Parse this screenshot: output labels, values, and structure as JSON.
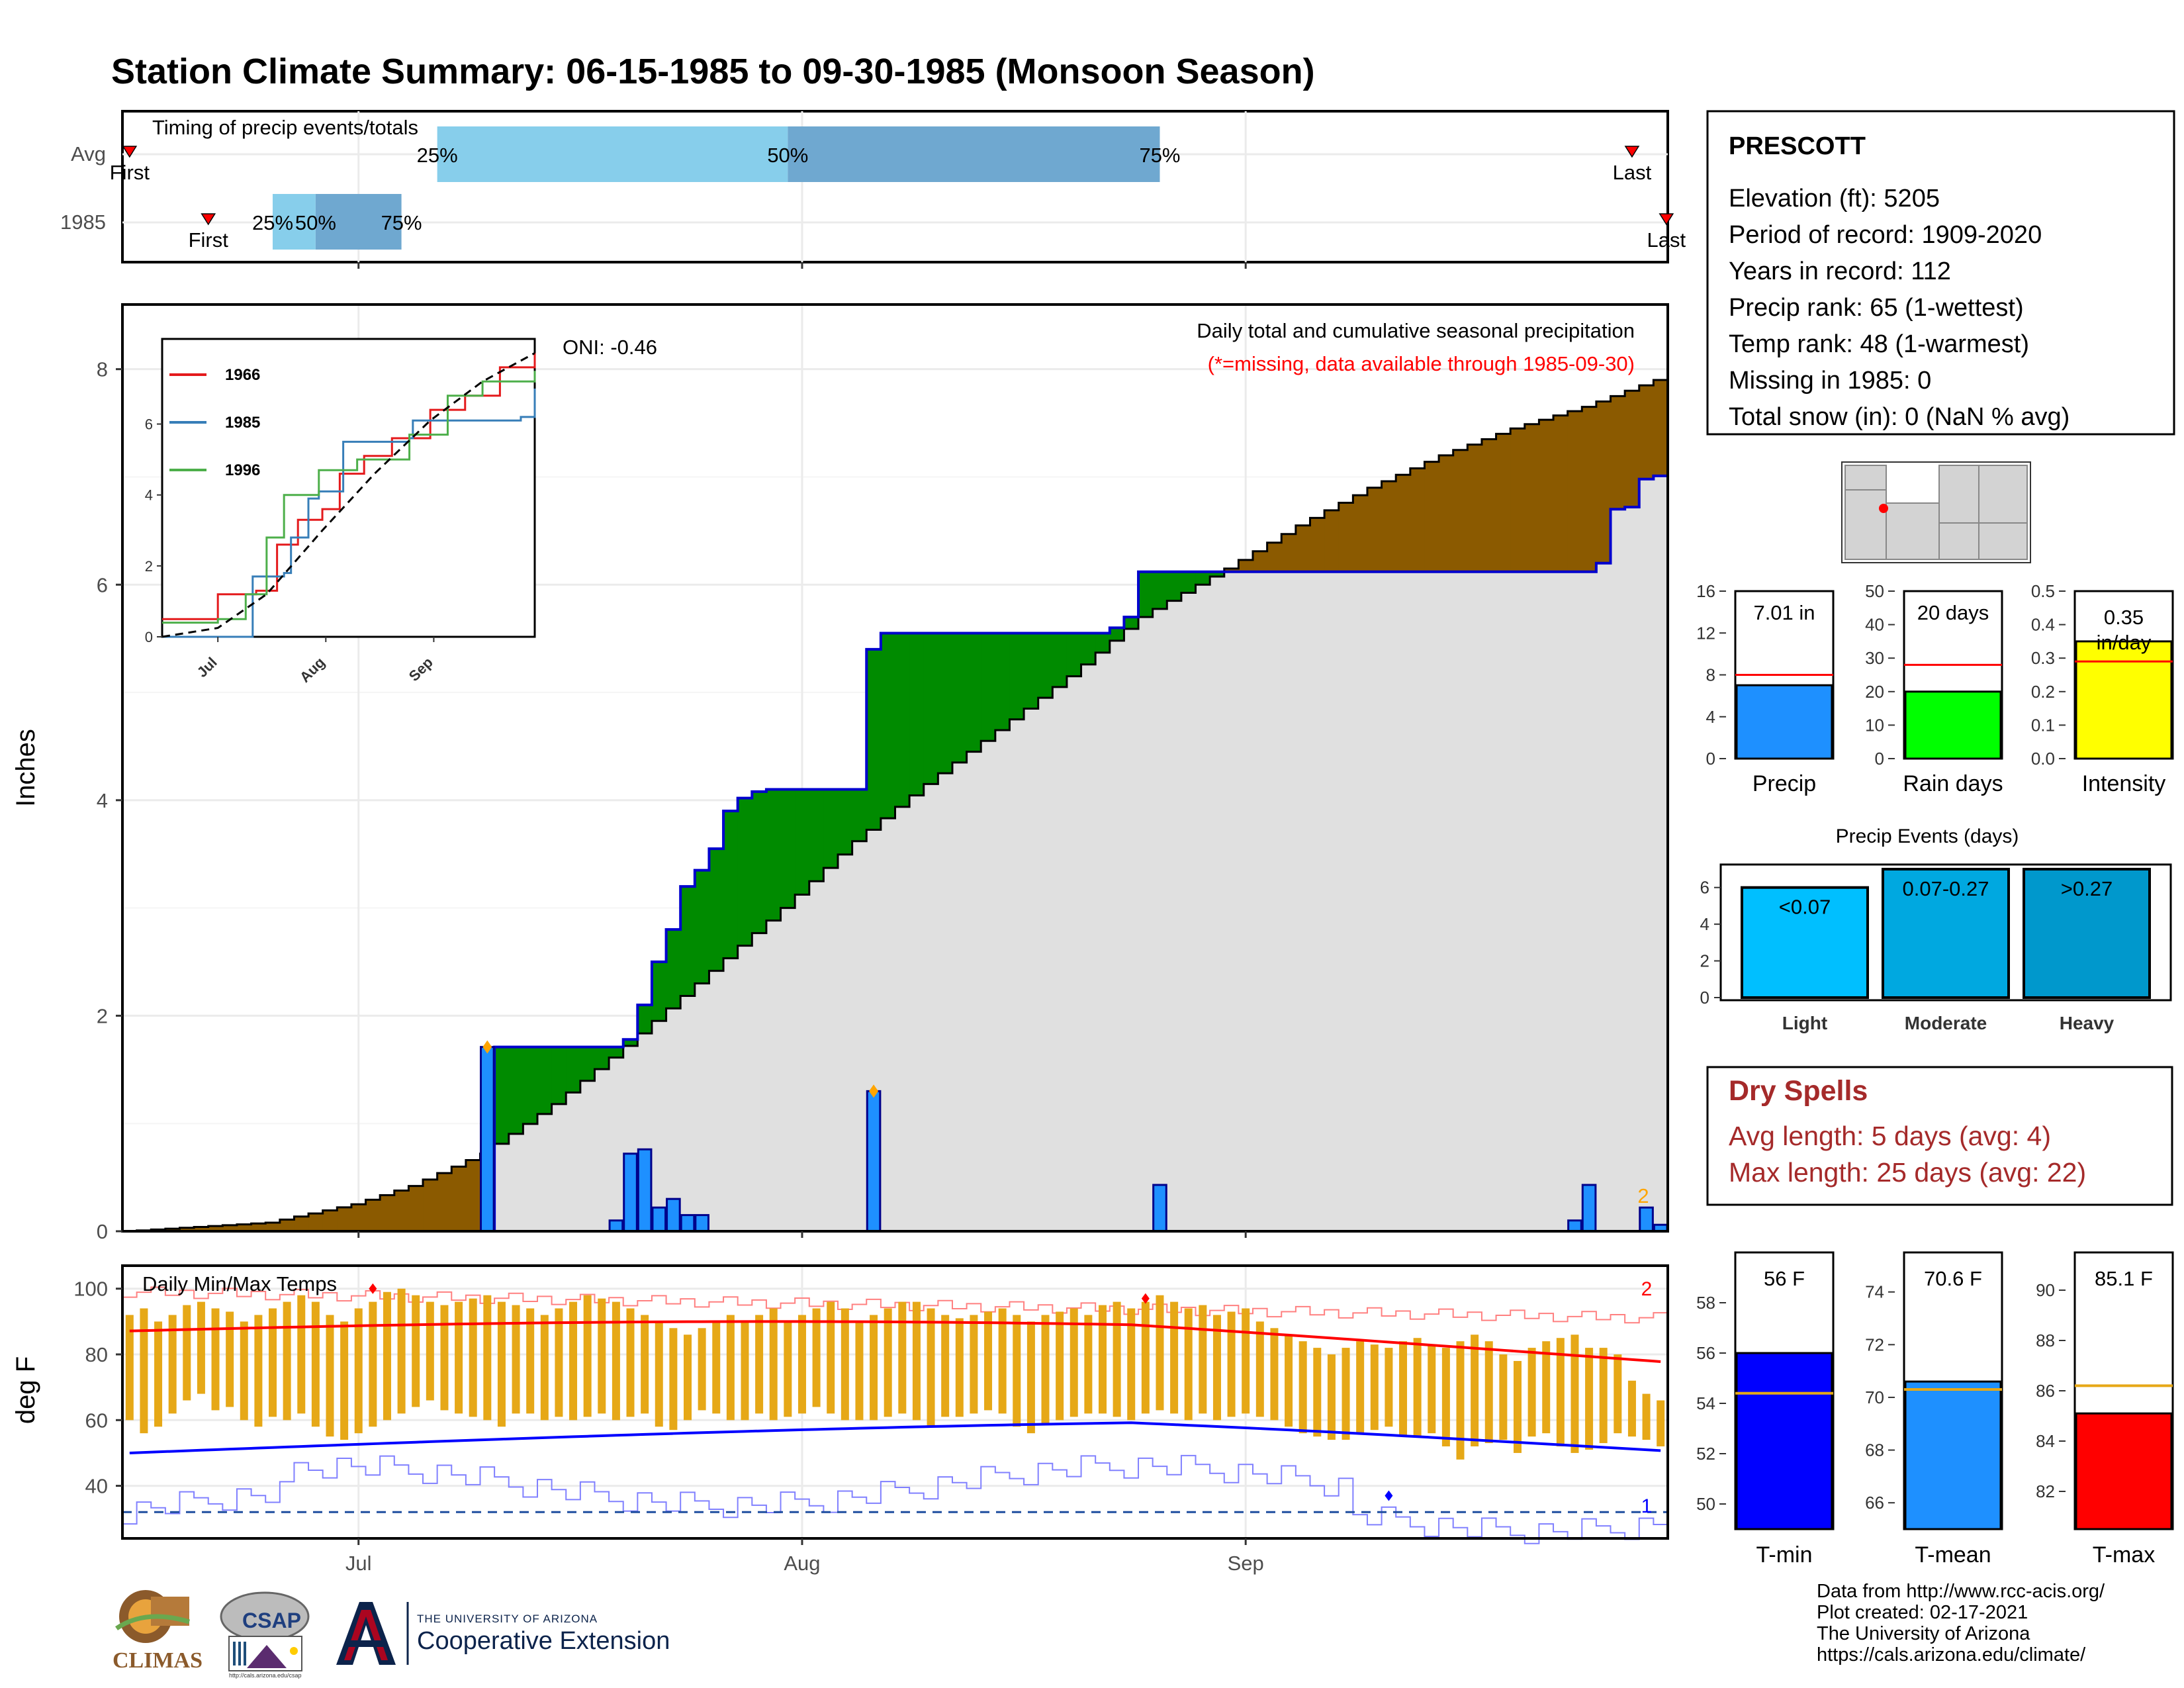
{
  "title": "Station Climate Summary: 06-15-1985 to 09-30-1985 (Monsoon Season)",
  "colors": {
    "title": "#ff0000",
    "precip_bar": "#1e90ff",
    "above_fill": "#008b00",
    "below_fill": "#8b5a00",
    "cumulative_fill": "#e0e0e0",
    "dry_spells": "#a52a2a",
    "temp_bar": "#e6a817"
  },
  "timing": {
    "title": "Timing of precip events/totals",
    "rows": [
      "Avg",
      "1985"
    ],
    "avg": {
      "first": "First",
      "last": "Last",
      "p25": "25%",
      "p50": "50%",
      "p75": "75%"
    },
    "y1985": {
      "first": "First",
      "last": "Last",
      "p25": "25%",
      "p50": "50%",
      "p75": "75%"
    }
  },
  "precip": {
    "ylabel": "Inches",
    "yticks": [
      "0",
      "2",
      "4",
      "6",
      "8"
    ],
    "annotation_title": "Daily total and cumulative seasonal precipitation",
    "annotation_missing": "(*=missing, data available through 1985-09-30)",
    "oni": "ONI: -0.46",
    "end_marker": "2"
  },
  "inset": {
    "legend": [
      "1966",
      "1985",
      "1996"
    ],
    "legend_colors": [
      "#e41a1c",
      "#377eb8",
      "#4daf4a"
    ],
    "yticks": [
      "0",
      "2",
      "4",
      "6"
    ],
    "xticks": [
      "Jul",
      "Aug",
      "Sep"
    ]
  },
  "temps": {
    "title": "Daily Min/Max Temps",
    "ylabel": "deg F",
    "yticks": [
      "40",
      "60",
      "80",
      "100"
    ],
    "xticks": [
      "Jul",
      "Aug",
      "Sep"
    ],
    "marker_high": "2",
    "marker_low": "1"
  },
  "station": {
    "name": "PRESCOTT",
    "lines": [
      "Elevation (ft): 5205",
      "Period of record: 1909-2020",
      "Years in record: 112",
      "Precip rank: 65 (1-wettest)",
      "Temp rank: 48 (1-warmest)",
      "Missing in 1985: 0",
      "Total snow (in): 0 (NaN % avg)"
    ]
  },
  "summary_bars": [
    {
      "label": "Precip",
      "value_text": "7.01 in",
      "value": 7.01,
      "avg": 8.0,
      "ymax": 16,
      "yticks": [
        "0",
        "4",
        "8",
        "12",
        "16"
      ],
      "color": "#1e90ff"
    },
    {
      "label": "Rain days",
      "value_text": "20 days",
      "value": 20,
      "avg": 28,
      "ymax": 50,
      "yticks": [
        "0",
        "10",
        "20",
        "30",
        "40",
        "50"
      ],
      "color": "#00ff00"
    },
    {
      "label": "Intensity",
      "value_text": "0.35 in/day",
      "value": 0.35,
      "avg": 0.29,
      "ymax": 0.5,
      "yticks": [
        "0.0",
        "0.1",
        "0.2",
        "0.3",
        "0.4",
        "0.5"
      ],
      "color": "#ffff00"
    }
  ],
  "events": {
    "title": "Precip Events (days)",
    "yticks": [
      "0",
      "2",
      "4",
      "6"
    ],
    "categories": [
      "Light",
      "Moderate",
      "Heavy"
    ],
    "bar_labels": [
      "<0.07",
      "0.07-0.27",
      ">0.27"
    ],
    "values": [
      6,
      7,
      7
    ],
    "colors": [
      "#00bfff",
      "#00a8e0",
      "#0098cc"
    ]
  },
  "dry_spells": {
    "title": "Dry Spells",
    "avg_length": "Avg length: 5 days (avg: 4)",
    "max_length": "Max length: 25 days (avg: 22)"
  },
  "temp_bars": [
    {
      "label": "T-min",
      "value_text": "56 F",
      "value": 56.0,
      "avg": 54.4,
      "ylim": [
        49,
        60
      ],
      "yticks": [
        "50",
        "52",
        "54",
        "56",
        "58"
      ],
      "color": "#0000ff"
    },
    {
      "label": "T-mean",
      "value_text": "70.6 F",
      "value": 70.6,
      "avg": 70.3,
      "ylim": [
        65,
        75.5
      ],
      "yticks": [
        "66",
        "68",
        "70",
        "72",
        "74"
      ],
      "color": "#1e90ff"
    },
    {
      "label": "T-max",
      "value_text": "85.1 F",
      "value": 85.1,
      "avg": 86.2,
      "ylim": [
        80.5,
        91.5
      ],
      "yticks": [
        "82",
        "84",
        "86",
        "88",
        "90"
      ],
      "color": "#ff0000"
    }
  ],
  "credits": [
    "Data from http://www.rcc-acis.org/",
    "Plot created: 02-17-2021",
    "The University of Arizona",
    "https://cals.arizona.edu/climate/"
  ],
  "logos": {
    "climas": "CLIMAS",
    "csap": "CSAP",
    "csap_url": "http://cals.arizona.edu/csap",
    "ua_small": "THE UNIVERSITY OF ARIZONA",
    "ua_big": "Cooperative Extension"
  },
  "chart_data": [
    {
      "type": "area",
      "title": "Daily total and cumulative seasonal precipitation",
      "ylabel": "Inches",
      "ylim": [
        0,
        8.6
      ],
      "x_range": [
        "1985-06-15",
        "1985-09-30"
      ],
      "xticks": [
        "Jul",
        "Aug",
        "Sep"
      ],
      "series": [
        {
          "name": "1985 cumulative",
          "points": [
            [
              "1985-06-15",
              0
            ],
            [
              "1985-07-10",
              0
            ],
            [
              "1985-07-11",
              1.71
            ],
            [
              "1985-07-20",
              1.78
            ],
            [
              "1985-07-21",
              2.1
            ],
            [
              "1985-07-22",
              2.5
            ],
            [
              "1985-07-23",
              2.8
            ],
            [
              "1985-07-24",
              3.2
            ],
            [
              "1985-07-25",
              3.35
            ],
            [
              "1985-07-26",
              3.55
            ],
            [
              "1985-07-27",
              3.9
            ],
            [
              "1985-07-28",
              4.02
            ],
            [
              "1985-07-29",
              4.08
            ],
            [
              "1985-07-30",
              4.1
            ],
            [
              "1985-08-05",
              4.1
            ],
            [
              "1985-08-06",
              5.4
            ],
            [
              "1985-08-07",
              5.55
            ],
            [
              "1985-08-22",
              5.55
            ],
            [
              "1985-08-23",
              5.6
            ],
            [
              "1985-08-24",
              5.7
            ],
            [
              "1985-08-25",
              6.12
            ],
            [
              "1985-09-26",
              6.2
            ],
            [
              "1985-09-27",
              6.7
            ],
            [
              "1985-09-28",
              6.72
            ],
            [
              "1985-09-29",
              6.98
            ],
            [
              "1985-09-30",
              7.01
            ]
          ]
        },
        {
          "name": "Average cumulative",
          "points": [
            [
              "1985-06-15",
              0
            ],
            [
              "1985-06-25",
              0.08
            ],
            [
              "1985-07-01",
              0.25
            ],
            [
              "1985-07-05",
              0.42
            ],
            [
              "1985-07-10",
              0.72
            ],
            [
              "1985-07-15",
              1.18
            ],
            [
              "1985-07-20",
              1.72
            ],
            [
              "1985-07-25",
              2.3
            ],
            [
              "1985-07-31",
              3.0
            ],
            [
              "1985-08-05",
              3.62
            ],
            [
              "1985-08-10",
              4.15
            ],
            [
              "1985-08-15",
              4.65
            ],
            [
              "1985-08-20",
              5.15
            ],
            [
              "1985-08-25",
              5.7
            ],
            [
              "1985-08-31",
              6.15
            ],
            [
              "1985-09-05",
              6.55
            ],
            [
              "1985-09-10",
              6.9
            ],
            [
              "1985-09-15",
              7.2
            ],
            [
              "1985-09-20",
              7.45
            ],
            [
              "1985-09-25",
              7.65
            ],
            [
              "1985-09-30",
              7.9
            ]
          ]
        }
      ],
      "daily_precip": [
        [
          "1985-07-10",
          1.71
        ],
        [
          "1985-07-19",
          0.1
        ],
        [
          "1985-07-20",
          0.72
        ],
        [
          "1985-07-21",
          0.76
        ],
        [
          "1985-07-22",
          0.22
        ],
        [
          "1985-07-23",
          0.3
        ],
        [
          "1985-07-24",
          0.15
        ],
        [
          "1985-07-25",
          0.15
        ],
        [
          "1985-08-06",
          1.3
        ],
        [
          "1985-08-26",
          0.43
        ],
        [
          "1985-09-24",
          0.1
        ],
        [
          "1985-09-25",
          0.43
        ],
        [
          "1985-09-29",
          0.22
        ],
        [
          "1985-09-30",
          0.06
        ]
      ]
    },
    {
      "type": "line",
      "title": "",
      "x_range": [
        "1985-06-15",
        "1985-09-30"
      ],
      "xticks": [
        "Jul",
        "Aug",
        "Sep"
      ],
      "ylim": [
        0,
        8.4
      ],
      "series": [
        {
          "name": "1966",
          "points": [
            [
              "1985-06-15",
              0.5
            ],
            [
              "1985-06-30",
              0.5
            ],
            [
              "1985-07-01",
              1.2
            ],
            [
              "1985-07-12",
              1.3
            ],
            [
              "1985-07-18",
              2.6
            ],
            [
              "1985-07-24",
              3.3
            ],
            [
              "1985-07-31",
              3.6
            ],
            [
              "1985-08-05",
              4.6
            ],
            [
              "1985-08-12",
              5.1
            ],
            [
              "1985-08-20",
              5.6
            ],
            [
              "1985-08-31",
              6.4
            ],
            [
              "1985-09-10",
              6.8
            ],
            [
              "1985-09-20",
              7.6
            ],
            [
              "1985-09-30",
              8.0
            ]
          ]
        },
        {
          "name": "1985",
          "points": [
            [
              "1985-06-15",
              0
            ],
            [
              "1985-07-10",
              0
            ],
            [
              "1985-07-11",
              1.7
            ],
            [
              "1985-07-20",
              1.8
            ],
            [
              "1985-07-22",
              2.8
            ],
            [
              "1985-07-27",
              3.9
            ],
            [
              "1985-07-30",
              4.1
            ],
            [
              "1985-08-05",
              4.1
            ],
            [
              "1985-08-06",
              5.5
            ],
            [
              "1985-08-25",
              5.6
            ],
            [
              "1985-08-26",
              6.1
            ],
            [
              "1985-09-26",
              6.2
            ],
            [
              "1985-09-30",
              7.0
            ]
          ]
        },
        {
          "name": "1996",
          "points": [
            [
              "1985-06-15",
              0.4
            ],
            [
              "1985-07-01",
              0.5
            ],
            [
              "1985-07-09",
              1.2
            ],
            [
              "1985-07-15",
              2.8
            ],
            [
              "1985-07-20",
              4.0
            ],
            [
              "1985-07-30",
              4.7
            ],
            [
              "1985-08-10",
              5.0
            ],
            [
              "1985-08-25",
              5.7
            ],
            [
              "1985-09-05",
              6.8
            ],
            [
              "1985-09-15",
              7.2
            ],
            [
              "1985-09-30",
              7.5
            ]
          ]
        },
        {
          "name": "Average",
          "points": [
            [
              "1985-06-15",
              0
            ],
            [
              "1985-07-01",
              0.25
            ],
            [
              "1985-07-15",
              1.2
            ],
            [
              "1985-07-31",
              3.0
            ],
            [
              "1985-08-15",
              4.6
            ],
            [
              "1985-08-31",
              6.1
            ],
            [
              "1985-09-15",
              7.2
            ],
            [
              "1985-09-30",
              8.0
            ]
          ]
        }
      ]
    },
    {
      "type": "bar",
      "title": "Daily Min/Max Temps",
      "ylabel": "deg F",
      "ylim": [
        24,
        107
      ],
      "x_range": [
        "1985-06-15",
        "1985-09-30"
      ],
      "daily_min": [
        60,
        56,
        58,
        62,
        66,
        68,
        63,
        64,
        60,
        58,
        61,
        60,
        62,
        58,
        55,
        54,
        56,
        58,
        60,
        62,
        64,
        66,
        63,
        62,
        61,
        60,
        58,
        62,
        62,
        60,
        61,
        60,
        61,
        62,
        60,
        61,
        62,
        58,
        57,
        60,
        63,
        62,
        60,
        60,
        62,
        60,
        61,
        62,
        64,
        62,
        60,
        60,
        60,
        61,
        62,
        60,
        58,
        61,
        61,
        62,
        63,
        62,
        58,
        56,
        59,
        60,
        61,
        62,
        62,
        61,
        60,
        62,
        63,
        62,
        60,
        62,
        60,
        61,
        62,
        61,
        60,
        58,
        56,
        55,
        54,
        54,
        56,
        57,
        58,
        55,
        55,
        56,
        52,
        48,
        52,
        53,
        54,
        50,
        55,
        56,
        52,
        50,
        51,
        53,
        56,
        55,
        54,
        52
      ],
      "daily_max": [
        92,
        94,
        90,
        92,
        95,
        96,
        94,
        93,
        90,
        92,
        94,
        96,
        98,
        96,
        92,
        90,
        94,
        96,
        99,
        100,
        98,
        96,
        95,
        96,
        97,
        98,
        96,
        95,
        94,
        92,
        94,
        96,
        98,
        97,
        96,
        94,
        92,
        90,
        88,
        86,
        88,
        90,
        92,
        90,
        92,
        94,
        90,
        92,
        94,
        96,
        94,
        90,
        92,
        94,
        96,
        96,
        94,
        92,
        91,
        92,
        93,
        94,
        92,
        90,
        92,
        93,
        94,
        92,
        95,
        96,
        94,
        96,
        98,
        96,
        94,
        95,
        92,
        93,
        94,
        90,
        88,
        86,
        84,
        82,
        80,
        82,
        84,
        83,
        82,
        84,
        85,
        83,
        82,
        84,
        86,
        84,
        80,
        78,
        82,
        84,
        85,
        86,
        82,
        82,
        80,
        72,
        68,
        66
      ],
      "series": [
        {
          "name": "Record high",
          "values_range": [
            90,
            100
          ]
        },
        {
          "name": "Average high",
          "values_range": [
            78,
            90
          ]
        },
        {
          "name": "Average low",
          "values_range": [
            45,
            60
          ]
        },
        {
          "name": "Record low",
          "values_range": [
            28,
            48
          ]
        }
      ],
      "freezing_line": 32
    },
    {
      "type": "bar",
      "categories": [
        "Precip"
      ],
      "values": [
        7.01
      ],
      "avg": 8.0,
      "ylim": [
        0,
        16
      ]
    },
    {
      "type": "bar",
      "categories": [
        "Rain days"
      ],
      "values": [
        20
      ],
      "avg": 28,
      "ylim": [
        0,
        50
      ]
    },
    {
      "type": "bar",
      "categories": [
        "Intensity"
      ],
      "values": [
        0.35
      ],
      "avg": 0.29,
      "ylim": [
        0,
        0.5
      ]
    },
    {
      "type": "bar",
      "title": "Precip Events (days)",
      "categories": [
        "Light",
        "Moderate",
        "Heavy"
      ],
      "values": [
        6,
        7,
        7
      ],
      "ylim": [
        0,
        7
      ]
    },
    {
      "type": "bar",
      "categories": [
        "T-min"
      ],
      "values": [
        56.0
      ],
      "avg": 54.4,
      "ylim": [
        49,
        60
      ]
    },
    {
      "type": "bar",
      "categories": [
        "T-mean"
      ],
      "values": [
        70.6
      ],
      "avg": 70.3,
      "ylim": [
        65,
        75.5
      ]
    },
    {
      "type": "bar",
      "categories": [
        "T-max"
      ],
      "values": [
        85.1
      ],
      "avg": 86.2,
      "ylim": [
        80.5,
        91.5
      ]
    }
  ]
}
